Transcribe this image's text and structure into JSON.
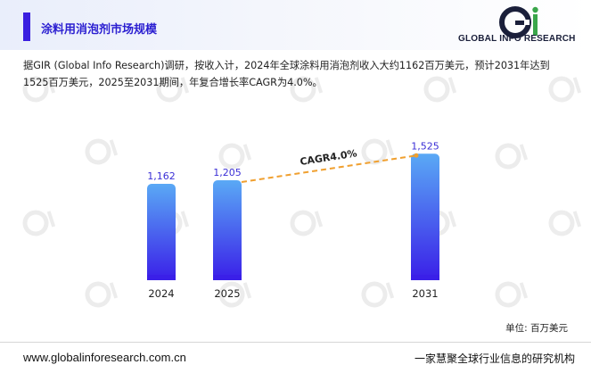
{
  "header": {
    "title": "涂料用消泡剂市场规模",
    "logo_text": "GLOBAL INFO RESEARCH",
    "logo_mark": "Gi"
  },
  "description": "据GIR (Global Info Research)调研，按收入计，2024年全球涂料用消泡剂收入大约1162百万美元，预计2031年达到1525百万美元，2025至2031期间，年复合增长率CAGR为4.0%。",
  "unit_label": "单位: 百万美元",
  "footer": {
    "website": "www.globalinforesearch.com.cn",
    "slogan": "一家慧聚全球行业信息的研究机构"
  },
  "colors": {
    "accent": "#3a1fe0",
    "bar_top": "#5aa9f5",
    "bar_bottom": "#3a1fe8",
    "label": "#3b2fd6",
    "cagr_line": "#f0a030",
    "logo_green": "#3aa64a"
  },
  "chart_data": {
    "type": "bar",
    "categories": [
      "2024",
      "2025",
      "2031"
    ],
    "values": [
      1162,
      1205,
      1525
    ],
    "value_labels": [
      "1,162",
      "1,205",
      "1,525"
    ],
    "annotation": "CAGR4.0%",
    "annotation_from": "2025",
    "annotation_to": "2031"
  }
}
